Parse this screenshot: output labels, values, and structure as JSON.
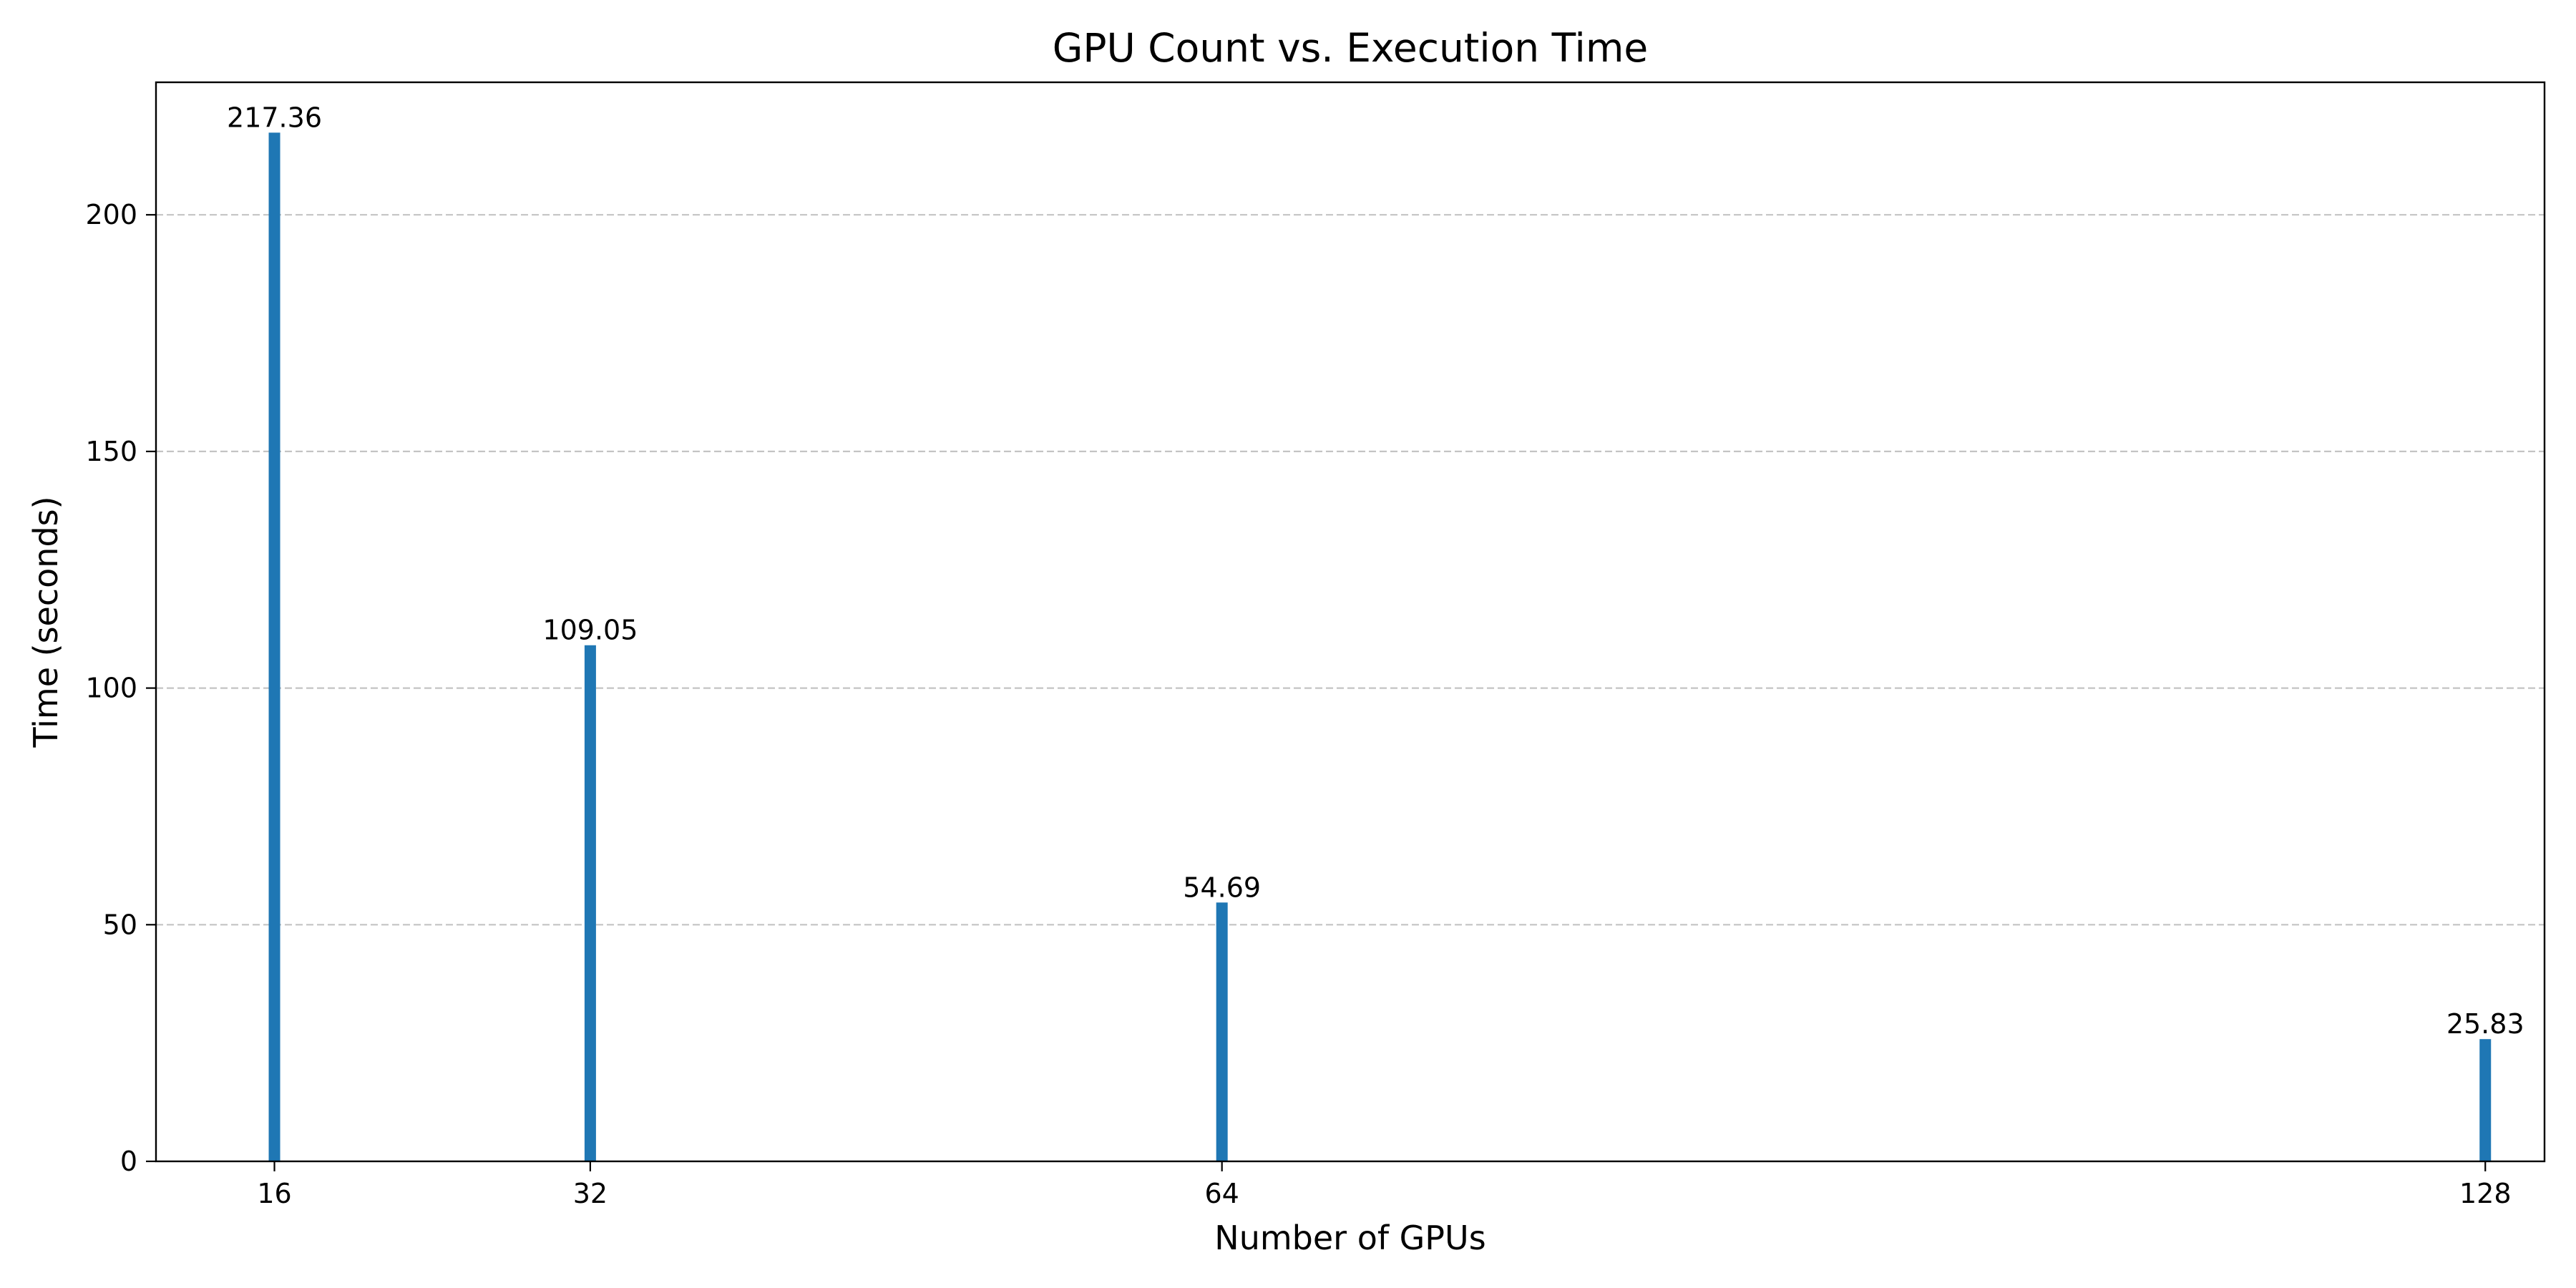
{
  "chart_data": {
    "type": "bar",
    "title": "GPU Count vs. Execution Time",
    "xlabel": "Number of GPUs",
    "ylabel": "Time (seconds)",
    "x": [
      16,
      32,
      64,
      128
    ],
    "values": [
      217.36,
      109.05,
      54.69,
      25.83
    ],
    "value_labels": [
      "217.36",
      "109.05",
      "54.69",
      "25.83"
    ],
    "x_tick_labels": [
      "16",
      "32",
      "64",
      "128"
    ],
    "y_ticks": [
      0,
      50,
      100,
      150,
      200
    ],
    "y_tick_labels": [
      "0",
      "50",
      "100",
      "150",
      "200"
    ],
    "xlim": [
      10,
      131
    ],
    "ylim": [
      0,
      228
    ],
    "grid": "y-dashed",
    "bar_color": "#1f77b4"
  }
}
